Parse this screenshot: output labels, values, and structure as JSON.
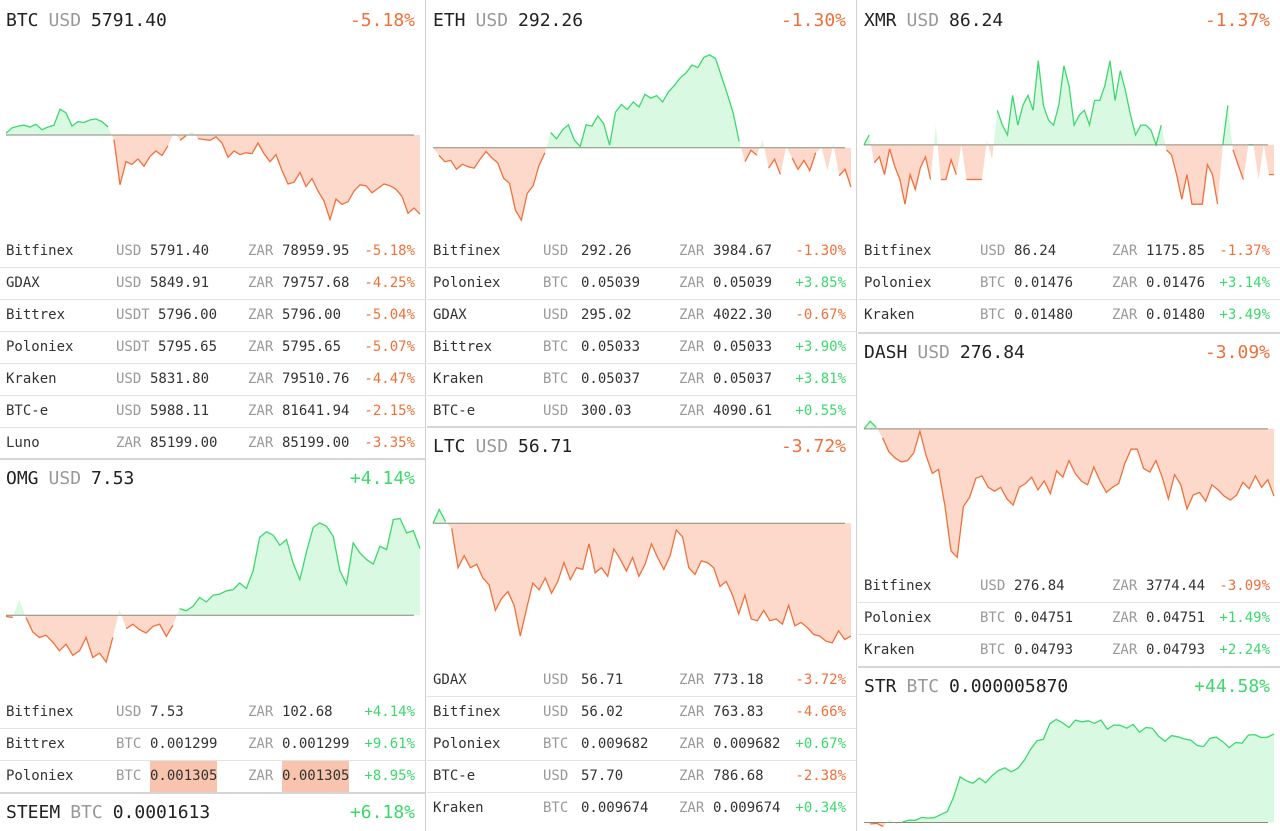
{
  "colors": {
    "up": "#3bd96c",
    "down": "#f0703a",
    "up_fill": "#d9f9e2",
    "down_fill": "#fdd9cc",
    "baseline": "#8a8a78"
  },
  "cards": [
    {
      "id": "btc",
      "symbol": "BTC",
      "currency": "USD",
      "price": "5791.40",
      "change": "-5.18%",
      "dir": "down",
      "rows": [
        {
          "ex": "Bitfinex",
          "c1": "USD",
          "v1": "5791.40",
          "c2": "ZAR",
          "v2": "78959.95",
          "pct": "-5.18%",
          "dir": "down"
        },
        {
          "ex": "GDAX",
          "c1": "USD",
          "v1": "5849.91",
          "c2": "ZAR",
          "v2": "79757.68",
          "pct": "-4.25%",
          "dir": "down"
        },
        {
          "ex": "Bittrex",
          "c1": "USDT",
          "v1": "5796.00",
          "c2": "ZAR",
          "v2": "5796.00",
          "pct": "-5.04%",
          "dir": "down"
        },
        {
          "ex": "Poloniex",
          "c1": "USDT",
          "v1": "5795.65",
          "c2": "ZAR",
          "v2": "5795.65",
          "pct": "-5.07%",
          "dir": "down"
        },
        {
          "ex": "Kraken",
          "c1": "USD",
          "v1": "5831.80",
          "c2": "ZAR",
          "v2": "79510.76",
          "pct": "-4.47%",
          "dir": "down"
        },
        {
          "ex": "BTC-e",
          "c1": "USD",
          "v1": "5988.11",
          "c2": "ZAR",
          "v2": "81641.94",
          "pct": "-2.15%",
          "dir": "down"
        },
        {
          "ex": "Luno",
          "c1": "ZAR",
          "v1": "85199.00",
          "c2": "ZAR",
          "v2": "85199.00",
          "pct": "-3.35%",
          "dir": "down"
        }
      ]
    },
    {
      "id": "omg",
      "symbol": "OMG",
      "currency": "USD",
      "price": "7.53",
      "change": "+4.14%",
      "dir": "up",
      "rows": [
        {
          "ex": "Bitfinex",
          "c1": "USD",
          "v1": "7.53",
          "c2": "ZAR",
          "v2": "102.68",
          "pct": "+4.14%",
          "dir": "up"
        },
        {
          "ex": "Bittrex",
          "c1": "BTC",
          "v1": "0.001299",
          "c2": "ZAR",
          "v2": "0.001299",
          "pct": "+9.61%",
          "dir": "up"
        },
        {
          "ex": "Poloniex",
          "c1": "BTC",
          "v1": "0.001305",
          "c2": "ZAR",
          "v2": "0.001305",
          "pct": "+8.95%",
          "dir": "up",
          "highlight": true
        }
      ]
    },
    {
      "id": "steem",
      "symbol": "STEEM",
      "currency": "BTC",
      "price": "0.0001613",
      "change": "+6.18%",
      "dir": "up",
      "rows": []
    },
    {
      "id": "eth",
      "symbol": "ETH",
      "currency": "USD",
      "price": "292.26",
      "change": "-1.30%",
      "dir": "down",
      "rows": [
        {
          "ex": "Bitfinex",
          "c1": "USD",
          "v1": "292.26",
          "c2": "ZAR",
          "v2": "3984.67",
          "pct": "-1.30%",
          "dir": "down"
        },
        {
          "ex": "Poloniex",
          "c1": "BTC",
          "v1": "0.05039",
          "c2": "ZAR",
          "v2": "0.05039",
          "pct": "+3.85%",
          "dir": "up"
        },
        {
          "ex": "GDAX",
          "c1": "USD",
          "v1": "295.02",
          "c2": "ZAR",
          "v2": "4022.30",
          "pct": "-0.67%",
          "dir": "down"
        },
        {
          "ex": "Bittrex",
          "c1": "BTC",
          "v1": "0.05033",
          "c2": "ZAR",
          "v2": "0.05033",
          "pct": "+3.90%",
          "dir": "up"
        },
        {
          "ex": "Kraken",
          "c1": "BTC",
          "v1": "0.05037",
          "c2": "ZAR",
          "v2": "0.05037",
          "pct": "+3.81%",
          "dir": "up"
        },
        {
          "ex": "BTC-e",
          "c1": "USD",
          "v1": "300.03",
          "c2": "ZAR",
          "v2": "4090.61",
          "pct": "+0.55%",
          "dir": "up"
        }
      ]
    },
    {
      "id": "ltc",
      "symbol": "LTC",
      "currency": "USD",
      "price": "56.71",
      "change": "-3.72%",
      "dir": "down",
      "rows": [
        {
          "ex": "GDAX",
          "c1": "USD",
          "v1": "56.71",
          "c2": "ZAR",
          "v2": "773.18",
          "pct": "-3.72%",
          "dir": "down"
        },
        {
          "ex": "Bitfinex",
          "c1": "USD",
          "v1": "56.02",
          "c2": "ZAR",
          "v2": "763.83",
          "pct": "-4.66%",
          "dir": "down"
        },
        {
          "ex": "Poloniex",
          "c1": "BTC",
          "v1": "0.009682",
          "c2": "ZAR",
          "v2": "0.009682",
          "pct": "+0.67%",
          "dir": "up"
        },
        {
          "ex": "BTC-e",
          "c1": "USD",
          "v1": "57.70",
          "c2": "ZAR",
          "v2": "786.68",
          "pct": "-2.38%",
          "dir": "down"
        },
        {
          "ex": "Kraken",
          "c1": "BTC",
          "v1": "0.009674",
          "c2": "ZAR",
          "v2": "0.009674",
          "pct": "+0.34%",
          "dir": "up"
        }
      ]
    },
    {
      "id": "xmr",
      "symbol": "XMR",
      "currency": "USD",
      "price": "86.24",
      "change": "-1.37%",
      "dir": "down",
      "rows": [
        {
          "ex": "Bitfinex",
          "c1": "USD",
          "v1": "86.24",
          "c2": "ZAR",
          "v2": "1175.85",
          "pct": "-1.37%",
          "dir": "down"
        },
        {
          "ex": "Poloniex",
          "c1": "BTC",
          "v1": "0.01476",
          "c2": "ZAR",
          "v2": "0.01476",
          "pct": "+3.14%",
          "dir": "up"
        },
        {
          "ex": "Kraken",
          "c1": "BTC",
          "v1": "0.01480",
          "c2": "ZAR",
          "v2": "0.01480",
          "pct": "+3.49%",
          "dir": "up"
        }
      ]
    },
    {
      "id": "dash",
      "symbol": "DASH",
      "currency": "USD",
      "price": "276.84",
      "change": "-3.09%",
      "dir": "down",
      "rows": [
        {
          "ex": "Bitfinex",
          "c1": "USD",
          "v1": "276.84",
          "c2": "ZAR",
          "v2": "3774.44",
          "pct": "-3.09%",
          "dir": "down"
        },
        {
          "ex": "Poloniex",
          "c1": "BTC",
          "v1": "0.04751",
          "c2": "ZAR",
          "v2": "0.04751",
          "pct": "+1.49%",
          "dir": "up"
        },
        {
          "ex": "Kraken",
          "c1": "BTC",
          "v1": "0.04793",
          "c2": "ZAR",
          "v2": "0.04793",
          "pct": "+2.24%",
          "dir": "up"
        }
      ]
    },
    {
      "id": "str",
      "symbol": "STR",
      "currency": "BTC",
      "price": "0.000005870",
      "change": "+44.58%",
      "dir": "up",
      "rows": []
    }
  ],
  "chart_data": [
    {
      "type": "area",
      "card": "btc",
      "baseline": 0,
      "ylim": [
        -10,
        10
      ],
      "values": [
        0.2,
        0.8,
        1.0,
        1.1,
        0.9,
        1.2,
        0.6,
        0.9,
        1.1,
        2.9,
        2.5,
        1.0,
        1.5,
        1.4,
        1.7,
        1.8,
        1.5,
        0.9,
        -0.5,
        -5.6,
        -3.0,
        -3.3,
        -2.7,
        -3.5,
        -2.4,
        -1.8,
        -2.3,
        -1.2,
        0.3,
        -0.6,
        -0.1,
        0.4,
        -0.4,
        -0.5,
        -0.6,
        -0.2,
        -0.9,
        -2.5,
        -1.8,
        -2.2,
        -2.0,
        -2.1,
        -0.9,
        -2.1,
        -3.0,
        -2.2,
        -4.0,
        -5.5,
        -5.3,
        -4.2,
        -5.8,
        -4.9,
        -6.3,
        -7.4,
        -9.5,
        -7.2,
        -7.8,
        -7.5,
        -6.3,
        -5.6,
        -5.7,
        -6.5,
        -6.0,
        -5.5,
        -5.7,
        -6.1,
        -6.9,
        -8.8,
        -8.2,
        -8.9
      ]
    },
    {
      "type": "area",
      "card": "omg",
      "baseline": 0,
      "ylim": [
        -6,
        10
      ],
      "values": [
        -0.1,
        -0.2,
        1.4,
        -0.2,
        -1.5,
        -2.0,
        -1.8,
        -2.4,
        -3.2,
        -2.6,
        -3.6,
        -3.2,
        -2.0,
        -3.8,
        -3.4,
        -4.2,
        -2.0,
        0.5,
        -1.2,
        -0.8,
        -1.3,
        -1.6,
        -1.0,
        -0.8,
        -1.9,
        -0.9,
        0.6,
        0.4,
        0.8,
        1.6,
        1.2,
        1.8,
        1.9,
        2.2,
        2.3,
        2.9,
        2.4,
        4.0,
        7.0,
        7.5,
        7.2,
        6.3,
        6.8,
        4.7,
        3.2,
        5.7,
        7.9,
        8.3,
        8.0,
        7.1,
        4.0,
        2.8,
        6.5,
        5.6,
        5.0,
        4.6,
        6.2,
        5.9,
        8.6,
        8.7,
        7.4,
        7.6,
        6.0
      ]
    },
    {
      "type": "area",
      "card": "steem",
      "baseline": 0,
      "ylim": [
        -6,
        10
      ],
      "values": []
    },
    {
      "type": "area",
      "card": "eth",
      "baseline": 0,
      "ylim": [
        -6,
        8
      ],
      "values": [
        0.0,
        -0.6,
        -1.1,
        -1.0,
        -1.7,
        -1.3,
        -1.5,
        -1.6,
        -0.9,
        -0.3,
        -0.8,
        -1.2,
        -2.4,
        -2.8,
        -4.9,
        -5.7,
        -3.6,
        -3.0,
        -1.4,
        -0.4,
        1.2,
        0.7,
        1.4,
        1.8,
        0.6,
        0.1,
        1.8,
        1.7,
        2.5,
        1.9,
        0.2,
        2.8,
        3.4,
        3.0,
        3.6,
        3.2,
        4.2,
        3.9,
        4.1,
        3.6,
        4.4,
        4.9,
        5.5,
        5.9,
        6.5,
        6.3,
        7.1,
        7.3,
        7.0,
        5.6,
        4.2,
        2.7,
        0.5,
        -1.1,
        -0.2,
        -0.6,
        0.6,
        -1.6,
        -0.9,
        -2.1,
        0.1,
        -0.8,
        -1.7,
        -1.0,
        -1.8,
        -0.4,
        0.0,
        -1.8,
        0.3,
        -2.2,
        -1.7,
        -3.1
      ]
    },
    {
      "type": "area",
      "card": "ltc",
      "baseline": 0,
      "ylim": [
        -8,
        3
      ],
      "values": [
        0.0,
        0.8,
        0.1,
        -0.3,
        -2.6,
        -1.9,
        -2.6,
        -2.4,
        -3.2,
        -3.6,
        -5.1,
        -4.4,
        -4.0,
        -4.8,
        -6.6,
        -5.0,
        -3.5,
        -3.9,
        -3.2,
        -4.1,
        -3.4,
        -2.3,
        -3.3,
        -2.6,
        -2.7,
        -1.2,
        -2.9,
        -2.6,
        -3.1,
        -1.5,
        -2.1,
        -2.8,
        -2.0,
        -3.1,
        -2.4,
        -1.2,
        -2.0,
        -2.7,
        -1.9,
        -0.4,
        -0.8,
        -2.6,
        -3.0,
        -2.2,
        -2.3,
        -2.6,
        -3.7,
        -3.4,
        -4.2,
        -5.3,
        -4.2,
        -5.6,
        -5.7,
        -5.1,
        -5.7,
        -5.6,
        -5.9,
        -4.8,
        -6.0,
        -5.8,
        -6.1,
        -6.5,
        -6.6,
        -6.9,
        -7.0,
        -6.3,
        -6.8,
        -6.6
      ]
    },
    {
      "type": "area",
      "card": "xmr",
      "baseline": 0,
      "ylim": [
        -8,
        10
      ],
      "values": [
        0.0,
        1.0,
        -1.8,
        -1.2,
        -3.0,
        -0.4,
        -2.2,
        -3.5,
        -6.0,
        -3.0,
        -4.5,
        -2.3,
        -1.2,
        -3.5,
        2.0,
        -3.5,
        -3.5,
        -1.5,
        -3.0,
        0.0,
        -3.5,
        -3.5,
        -3.5,
        -3.5,
        0.5,
        -1.5,
        3.5,
        2.0,
        1.0,
        5.0,
        2.0,
        4.0,
        5.0,
        3.5,
        8.5,
        4.0,
        2.5,
        2.0,
        4.0,
        8.0,
        6.0,
        2.0,
        3.0,
        3.5,
        2.0,
        4.5,
        4.5,
        6.0,
        8.5,
        4.5,
        7.5,
        5.5,
        3.0,
        1.0,
        2.0,
        2.0,
        1.5,
        0.0,
        2.0,
        -0.5,
        -1.0,
        -3.0,
        -5.5,
        -3.0,
        -6.0,
        -6.0,
        -6.0,
        -2.0,
        -3.0,
        -6.0,
        0.0,
        4.0,
        -0.5,
        -2.0,
        -3.5,
        0.0,
        0.0,
        -3.5,
        0.0,
        -3.0,
        -3.0
      ]
    },
    {
      "type": "area",
      "card": "dash",
      "baseline": 0,
      "ylim": [
        -10,
        4
      ],
      "values": [
        0.0,
        0.6,
        0.1,
        -0.7,
        -1.8,
        -2.3,
        -2.6,
        -2.5,
        -1.9,
        -0.2,
        -2.1,
        -3.5,
        -3.2,
        -6.0,
        -9.6,
        -10.1,
        -6.1,
        -5.4,
        -3.9,
        -3.7,
        -4.6,
        -4.9,
        -4.6,
        -5.5,
        -6.0,
        -4.6,
        -4.3,
        -3.8,
        -4.8,
        -4.1,
        -5.1,
        -3.3,
        -3.8,
        -2.5,
        -3.5,
        -4.1,
        -4.4,
        -3.0,
        -4.1,
        -5.0,
        -4.6,
        -4.3,
        -2.7,
        -1.6,
        -1.6,
        -3.1,
        -3.4,
        -2.5,
        -3.8,
        -5.5,
        -3.6,
        -4.4,
        -6.3,
        -5.2,
        -5.0,
        -5.7,
        -4.4,
        -4.8,
        -5.3,
        -5.6,
        -5.2,
        -4.2,
        -4.7,
        -3.7,
        -4.6,
        -4.0,
        -5.3
      ]
    },
    {
      "type": "area",
      "card": "str",
      "baseline": 0,
      "ylim": [
        -1,
        45
      ],
      "values": [
        0.0,
        -0.6,
        -0.3,
        -1.6,
        1.2,
        -0.5,
        0.2,
        1.0,
        0.9,
        2.1,
        1.8,
        2.0,
        3.3,
        4.5,
        10.5,
        18.6,
        17.0,
        16.0,
        18.1,
        16.2,
        19.1,
        21.2,
        22.3,
        20.7,
        22.1,
        25.3,
        29.8,
        33.3,
        33.9,
        40.2,
        42.0,
        40.6,
        38.7,
        41.7,
        41.0,
        41.4,
        40.4,
        41.7,
        38.0,
        39.7,
        39.6,
        38.4,
        40.0,
        36.8,
        38.7,
        38.4,
        35.1,
        33.1,
        35.4,
        34.9,
        34.0,
        33.6,
        31.4,
        30.9,
        34.3,
        34.8,
        32.9,
        30.5,
        32.6,
        32.3,
        35.6,
        35.8,
        34.6,
        34.8,
        36.1
      ]
    }
  ]
}
